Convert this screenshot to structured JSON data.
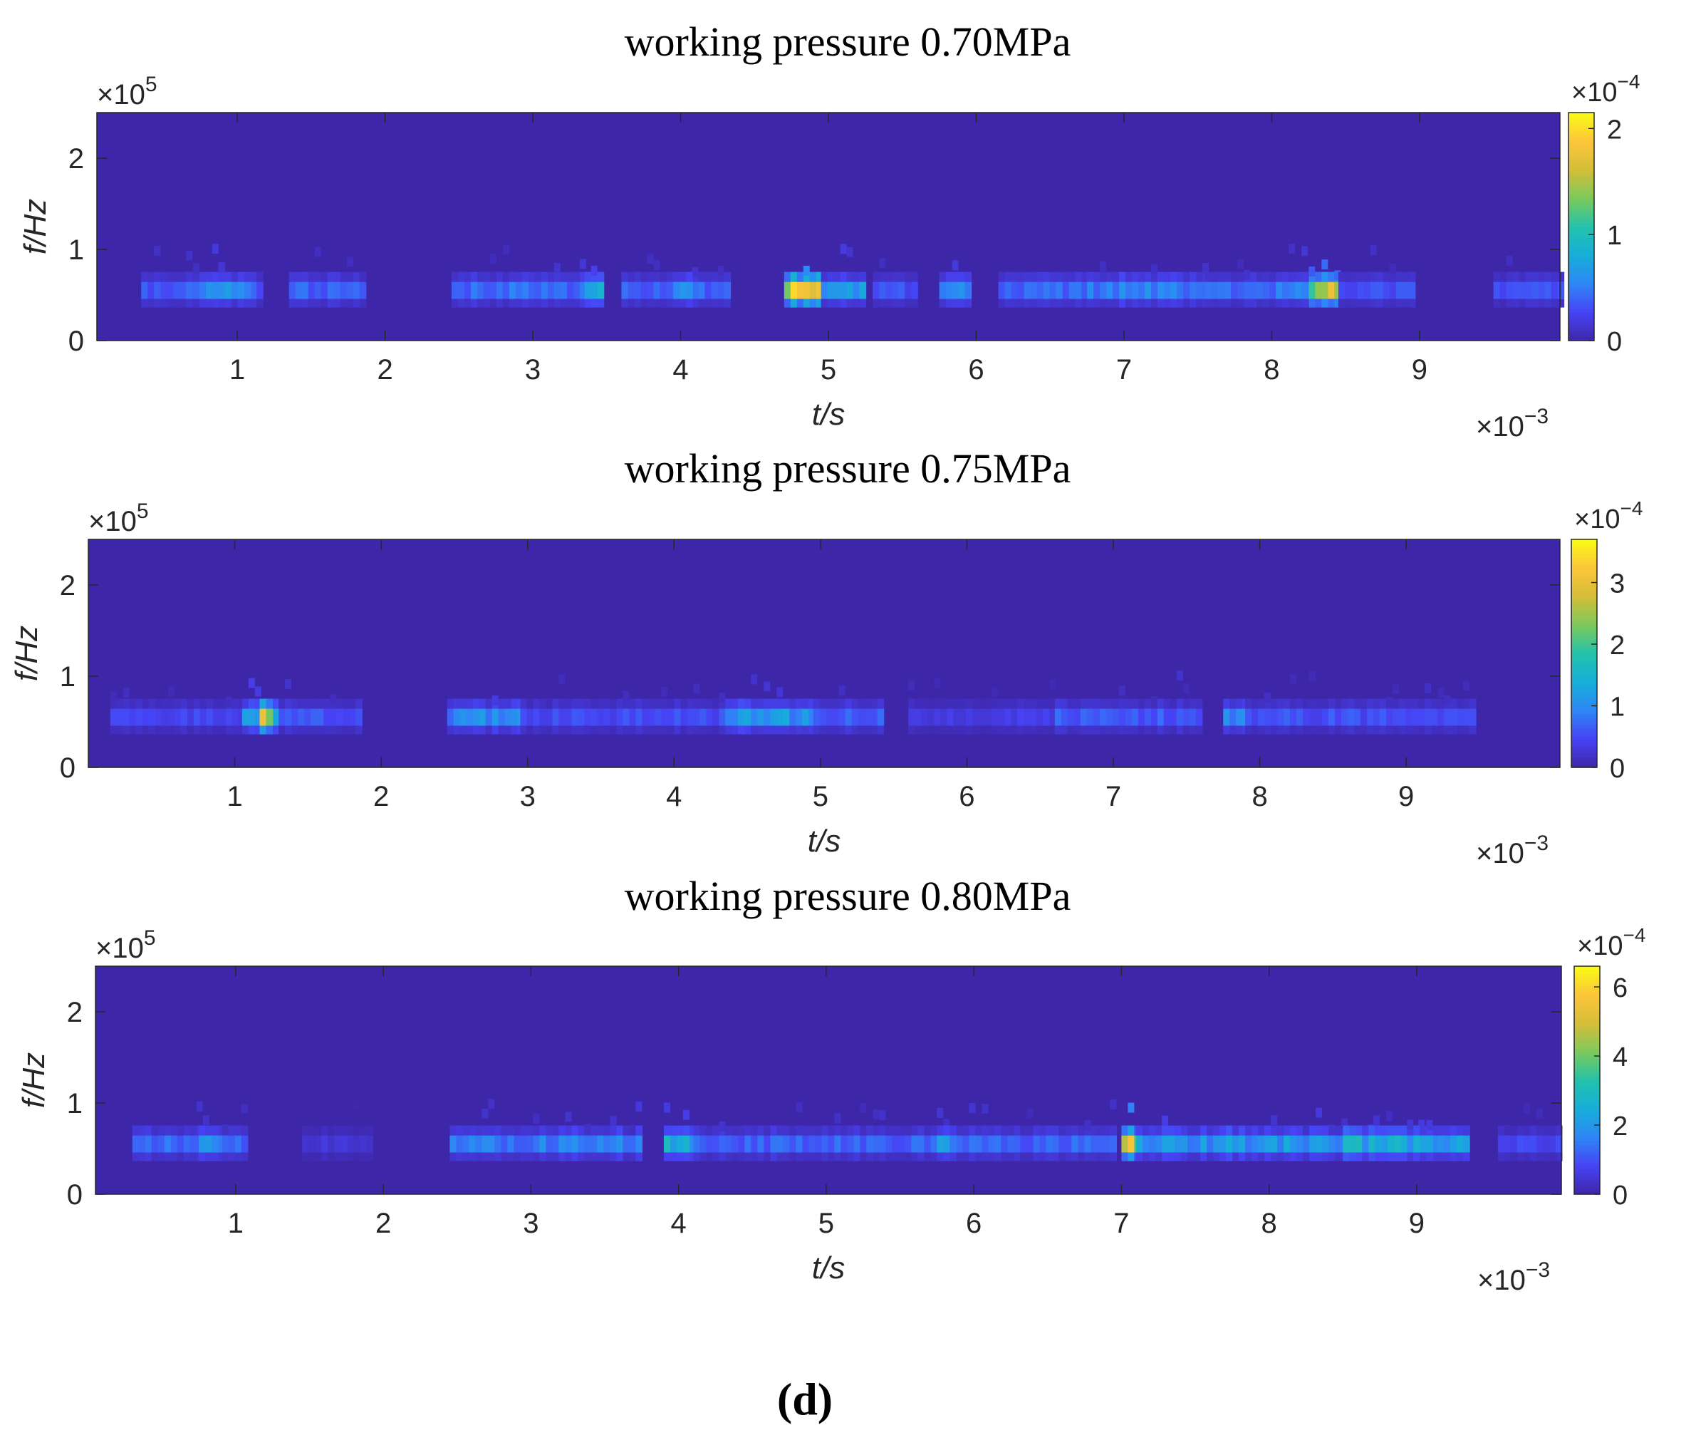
{
  "figure_label": "(d)",
  "chart_data": [
    {
      "type": "heatmap",
      "title": "working pressure 0.70MPa",
      "xlabel": "t/s",
      "ylabel": "f/Hz",
      "x_exponent_label": "×10",
      "x_exponent_power": "−3",
      "y_exponent_label": "×10",
      "y_exponent_power": "5",
      "colorbar_exponent_label": "×10",
      "colorbar_exponent_power": "−4",
      "xlim": [
        0.05,
        9.95
      ],
      "ylim": [
        0,
        2.5
      ],
      "xticks": [
        "1",
        "2",
        "3",
        "4",
        "5",
        "6",
        "7",
        "8",
        "9"
      ],
      "yticks": [
        "0",
        "1",
        "2"
      ],
      "colorbar_ticks": [
        "0",
        "1",
        "2"
      ],
      "clim": [
        0,
        2.15
      ],
      "colormap": "parula",
      "events": [
        {
          "t0": 0.35,
          "t1": 1.15,
          "f": 0.55,
          "v": 0.45
        },
        {
          "t0": 0.7,
          "t1": 1.05,
          "f": 0.55,
          "v": 0.7
        },
        {
          "t0": 1.35,
          "t1": 1.85,
          "f": 0.55,
          "v": 0.5
        },
        {
          "t0": 2.45,
          "t1": 3.4,
          "f": 0.55,
          "v": 0.55
        },
        {
          "t0": 3.35,
          "t1": 3.45,
          "f": 0.55,
          "v": 0.95
        },
        {
          "t0": 3.6,
          "t1": 4.3,
          "f": 0.55,
          "v": 0.5
        },
        {
          "t0": 3.95,
          "t1": 4.05,
          "f": 0.55,
          "v": 0.85
        },
        {
          "t0": 4.7,
          "t1": 4.95,
          "f": 0.55,
          "v": 2.15
        },
        {
          "t0": 4.95,
          "t1": 5.25,
          "f": 0.55,
          "v": 0.9
        },
        {
          "t0": 5.3,
          "t1": 5.6,
          "f": 0.55,
          "v": 0.4
        },
        {
          "t0": 5.75,
          "t1": 5.95,
          "f": 0.55,
          "v": 0.75
        },
        {
          "t0": 6.15,
          "t1": 6.75,
          "f": 0.55,
          "v": 0.5
        },
        {
          "t0": 6.75,
          "t1": 7.55,
          "f": 0.55,
          "v": 0.65
        },
        {
          "t0": 7.55,
          "t1": 8.25,
          "f": 0.55,
          "v": 0.6
        },
        {
          "t0": 8.25,
          "t1": 8.45,
          "f": 0.55,
          "v": 1.85
        },
        {
          "t0": 8.45,
          "t1": 8.95,
          "f": 0.55,
          "v": 0.4
        },
        {
          "t0": 9.5,
          "t1": 9.95,
          "f": 0.55,
          "v": 0.4
        }
      ]
    },
    {
      "type": "heatmap",
      "title": "working pressure 0.75MPa",
      "xlabel": "t/s",
      "ylabel": "f/Hz",
      "x_exponent_label": "×10",
      "x_exponent_power": "−3",
      "y_exponent_label": "×10",
      "y_exponent_power": "5",
      "colorbar_exponent_label": "×10",
      "colorbar_exponent_power": "−4",
      "xlim": [
        0.0,
        10.05
      ],
      "ylim": [
        0,
        2.5
      ],
      "xticks": [
        "1",
        "2",
        "3",
        "4",
        "5",
        "6",
        "7",
        "8",
        "9"
      ],
      "yticks": [
        "0",
        "1",
        "2"
      ],
      "colorbar_ticks": [
        "0",
        "1",
        "2",
        "3"
      ],
      "clim": [
        0,
        3.7
      ],
      "colormap": "parula",
      "events": [
        {
          "t0": 0.15,
          "t1": 1.05,
          "f": 0.55,
          "v": 0.6
        },
        {
          "t0": 1.05,
          "t1": 1.3,
          "f": 0.55,
          "v": 1.6
        },
        {
          "t0": 1.17,
          "t1": 1.22,
          "f": 0.55,
          "v": 3.5
        },
        {
          "t0": 1.3,
          "t1": 1.85,
          "f": 0.55,
          "v": 0.7
        },
        {
          "t0": 2.45,
          "t1": 2.95,
          "f": 0.55,
          "v": 1.2
        },
        {
          "t0": 2.95,
          "t1": 4.35,
          "f": 0.55,
          "v": 0.65
        },
        {
          "t0": 4.35,
          "t1": 4.95,
          "f": 0.55,
          "v": 1.4
        },
        {
          "t0": 4.95,
          "t1": 5.4,
          "f": 0.55,
          "v": 0.8
        },
        {
          "t0": 5.6,
          "t1": 6.6,
          "f": 0.55,
          "v": 0.45
        },
        {
          "t0": 6.6,
          "t1": 7.6,
          "f": 0.55,
          "v": 0.8
        },
        {
          "t0": 7.75,
          "t1": 7.9,
          "f": 0.55,
          "v": 1.3
        },
        {
          "t0": 7.9,
          "t1": 9.45,
          "f": 0.55,
          "v": 0.7
        }
      ]
    },
    {
      "type": "heatmap",
      "title": "working pressure 0.80MPa",
      "xlabel": "t/s",
      "ylabel": "f/Hz",
      "x_exponent_label": "×10",
      "x_exponent_power": "−3",
      "y_exponent_label": "×10",
      "y_exponent_power": "5",
      "colorbar_exponent_label": "×10",
      "colorbar_exponent_power": "−4",
      "xlim": [
        0.05,
        9.98
      ],
      "ylim": [
        0,
        2.5
      ],
      "xticks": [
        "1",
        "2",
        "3",
        "4",
        "5",
        "6",
        "7",
        "8",
        "9"
      ],
      "yticks": [
        "0",
        "1",
        "2"
      ],
      "colorbar_ticks": [
        "0",
        "2",
        "4",
        "6"
      ],
      "clim": [
        0,
        6.6
      ],
      "colormap": "parula",
      "events": [
        {
          "t0": 0.3,
          "t1": 1.05,
          "f": 0.55,
          "v": 1.6
        },
        {
          "t0": 0.75,
          "t1": 0.85,
          "f": 0.55,
          "v": 2.8
        },
        {
          "t0": 1.45,
          "t1": 1.9,
          "f": 0.55,
          "v": 0.6
        },
        {
          "t0": 2.45,
          "t1": 3.75,
          "f": 0.55,
          "v": 2.0
        },
        {
          "t0": 3.9,
          "t1": 4.1,
          "f": 0.55,
          "v": 3.2
        },
        {
          "t0": 4.1,
          "t1": 6.95,
          "f": 0.55,
          "v": 1.5
        },
        {
          "t0": 5.75,
          "t1": 5.85,
          "f": 0.55,
          "v": 2.5
        },
        {
          "t0": 7.0,
          "t1": 7.1,
          "f": 0.55,
          "v": 6.4
        },
        {
          "t0": 7.1,
          "t1": 9.35,
          "f": 0.55,
          "v": 2.5
        },
        {
          "t0": 8.5,
          "t1": 9.1,
          "f": 0.55,
          "v": 3.0
        },
        {
          "t0": 9.55,
          "t1": 9.98,
          "f": 0.55,
          "v": 1.0
        }
      ]
    }
  ]
}
